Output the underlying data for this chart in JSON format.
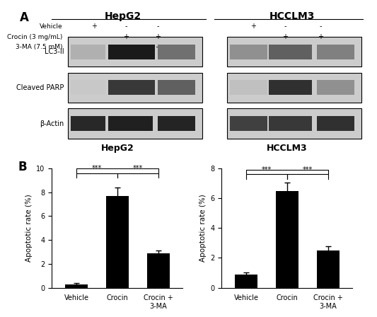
{
  "panel_A_label": "A",
  "panel_B_label": "B",
  "hepg2_title": "HepG2",
  "hcclm3_title": "HCCLM3",
  "treatment_labels": [
    "Vehicle",
    "Crocin (3 mg/mL)",
    "3-MA (7.5 mM)"
  ],
  "hepg2_signs": [
    [
      "+",
      "-",
      "-"
    ],
    [
      "-",
      "+",
      "+"
    ],
    [
      "-",
      "-",
      "+"
    ]
  ],
  "hcclm3_signs": [
    [
      "+",
      "-",
      "-"
    ],
    [
      "-",
      "+",
      "+"
    ],
    [
      "-",
      "-",
      "+"
    ]
  ],
  "protein_labels": [
    "LC3-II",
    "Cleaved PARP",
    "β-Actin"
  ],
  "hepg2_bar_values": [
    0.3,
    7.7,
    2.9
  ],
  "hepg2_bar_errors": [
    0.1,
    0.7,
    0.2
  ],
  "hcclm3_bar_values": [
    0.9,
    6.5,
    2.5
  ],
  "hcclm3_bar_errors": [
    0.15,
    0.55,
    0.3
  ],
  "hepg2_ylim": [
    0,
    10
  ],
  "hcclm3_ylim": [
    0,
    8
  ],
  "hepg2_yticks": [
    0,
    2,
    4,
    6,
    8,
    10
  ],
  "hcclm3_yticks": [
    0,
    2,
    4,
    6,
    8
  ],
  "bar_categories": [
    "Vehicle",
    "Crocin",
    "Crocin +\n3-MA"
  ],
  "ylabel": "Apoptotic rate (%)",
  "bar_color": "#000000",
  "sig_label": "***",
  "background_color": "#ffffff"
}
